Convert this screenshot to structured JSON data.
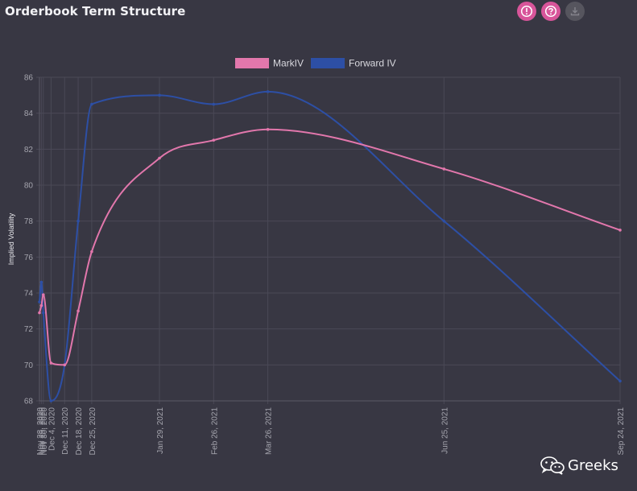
{
  "page": {
    "title": "Orderbook Term Structure"
  },
  "toolbar": {
    "buttons": [
      {
        "icon": "alert-circle-icon",
        "color": "#d8559a"
      },
      {
        "icon": "help-circle-icon",
        "color": "#d8559a"
      },
      {
        "icon": "download-icon",
        "color": "#56555e"
      }
    ]
  },
  "watermark": {
    "text": "Greeks",
    "icon": "wechat-icon"
  },
  "chart_data": {
    "type": "line",
    "title": "",
    "ylabel": "Implied Volatility",
    "xlabel": "",
    "ylim": [
      68,
      86
    ],
    "yticks": [
      68,
      70,
      72,
      74,
      76,
      78,
      80,
      82,
      84,
      86
    ],
    "grid": true,
    "legend_position": "top-center",
    "x": [
      "Nov 28, 2020",
      "Nov 29, 2020",
      "Nov 30, 2020",
      "Dec 4, 2020",
      "Dec 11, 2020",
      "Dec 18, 2020",
      "Dec 25, 2020",
      "Jan 29, 2021",
      "Feb 26, 2021",
      "Mar 26, 2021",
      "Jun 25, 2021",
      "Sep 24, 2021"
    ],
    "x_days": [
      0,
      1,
      2,
      6,
      13,
      20,
      27,
      62,
      90,
      118,
      209,
      300
    ],
    "tick_labels": [
      "Nov 28, 2020",
      "Nov 29, 2020",
      "Nov 30, 2020",
      "Dec 4, 2020",
      "Dec 11, 2020",
      "Dec 18, 2020",
      "Dec 25, 2020",
      "Jan 29, 2021",
      "Feb 26, 2021",
      "Mar 26, 2021",
      "Jun 25, 2021",
      "Sep 24, 2021"
    ],
    "series": [
      {
        "name": "MarkIV",
        "color": "#e277ac",
        "values": [
          72.9,
          73.3,
          73.9,
          70.1,
          70.0,
          73.0,
          76.3,
          81.5,
          82.5,
          83.1,
          80.9,
          77.5
        ]
      },
      {
        "name": "Forward IV",
        "color": "#2d4fa5",
        "values": [
          73.5,
          74.6,
          72.9,
          68.0,
          70.0,
          78.0,
          84.5,
          85.0,
          84.5,
          85.2,
          78.0,
          69.1
        ]
      }
    ]
  }
}
